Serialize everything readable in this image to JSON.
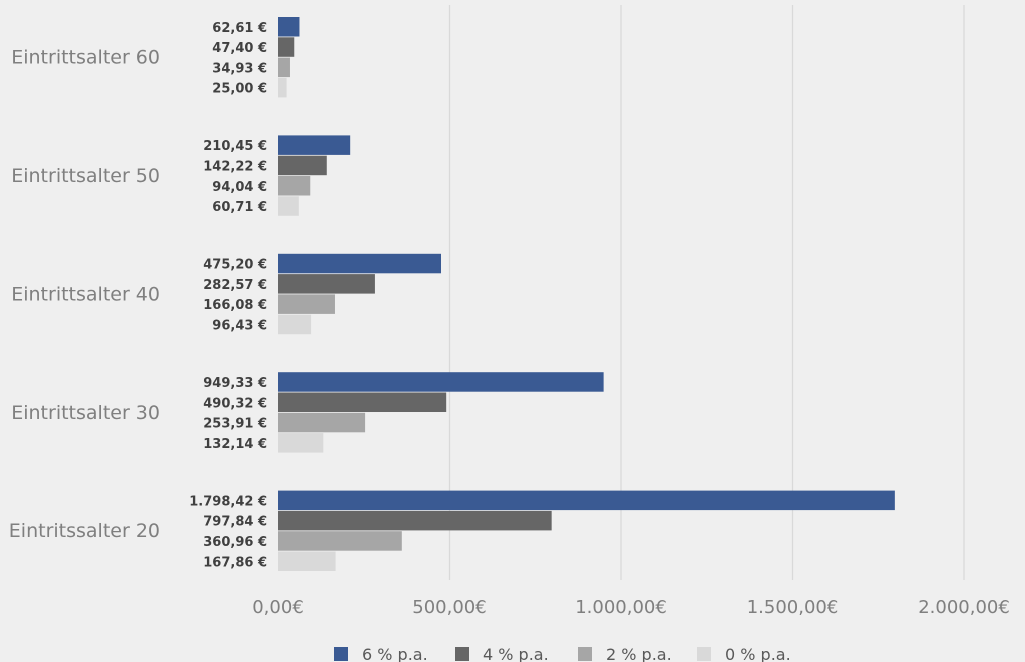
{
  "chart_data": {
    "type": "bar",
    "orientation": "horizontal",
    "categories": [
      "Eintrittsalter 60",
      "Eintrittsalter 50",
      "Eintrittsalter 40",
      "Eintrittsalter 30",
      "Eintritssalter 20"
    ],
    "series": [
      {
        "name": "6 % p.a.",
        "color": "#3a5a93",
        "values": [
          62.61,
          210.45,
          475.2,
          949.33,
          1798.42
        ],
        "labels": [
          "62,61 €",
          "210,45 €",
          "475,20 €",
          "949,33 €",
          "1.798,42 €"
        ]
      },
      {
        "name": "4 % p.a.",
        "color": "#666666",
        "values": [
          47.4,
          142.22,
          282.57,
          490.32,
          797.84
        ],
        "labels": [
          "47,40 €",
          "142,22 €",
          "282,57 €",
          "490,32 €",
          "797,84 €"
        ]
      },
      {
        "name": "2 % p.a.",
        "color": "#a6a6a6",
        "values": [
          34.93,
          94.04,
          166.08,
          253.91,
          360.96
        ],
        "labels": [
          "34,93 €",
          "94,04 €",
          "166,08 €",
          "253,91 €",
          "360,96 €"
        ]
      },
      {
        "name": "0 % p.a.",
        "color": "#d9d9d9",
        "values": [
          25.0,
          60.71,
          96.43,
          132.14,
          167.86
        ],
        "labels": [
          "25,00 €",
          "60,71 €",
          "96,43 €",
          "132,14 €",
          "167,86 €"
        ]
      }
    ],
    "x_ticks": [
      0,
      500,
      1000,
      1500,
      2000
    ],
    "x_tick_labels": [
      "0,00€",
      "500,00€",
      "1.000,00€",
      "1.500,00€",
      "2.000,00€"
    ],
    "xlim": [
      0,
      2000
    ],
    "grid": "vertical",
    "legend_position": "bottom",
    "title": "",
    "xlabel": "",
    "ylabel": ""
  }
}
